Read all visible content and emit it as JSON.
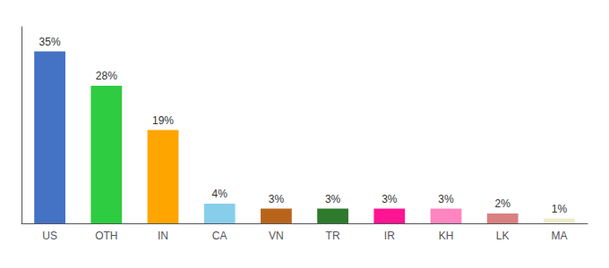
{
  "chart_data": {
    "type": "bar",
    "categories": [
      "US",
      "OTH",
      "IN",
      "CA",
      "VN",
      "TR",
      "IR",
      "KH",
      "LK",
      "MA"
    ],
    "values": [
      35,
      28,
      19,
      4,
      3,
      3,
      3,
      3,
      2,
      1
    ],
    "value_labels": [
      "35%",
      "28%",
      "19%",
      "4%",
      "3%",
      "3%",
      "3%",
      "3%",
      "2%",
      "1%"
    ],
    "colors": [
      "#4472C4",
      "#2ECC40",
      "#FFA500",
      "#87CEEB",
      "#B8651B",
      "#2D7A2D",
      "#FF1493",
      "#FF85C0",
      "#D98080",
      "#F0ECD0"
    ],
    "ylim": [
      0,
      40
    ],
    "data_labels": true,
    "tick_labels": "x",
    "grid": false
  }
}
